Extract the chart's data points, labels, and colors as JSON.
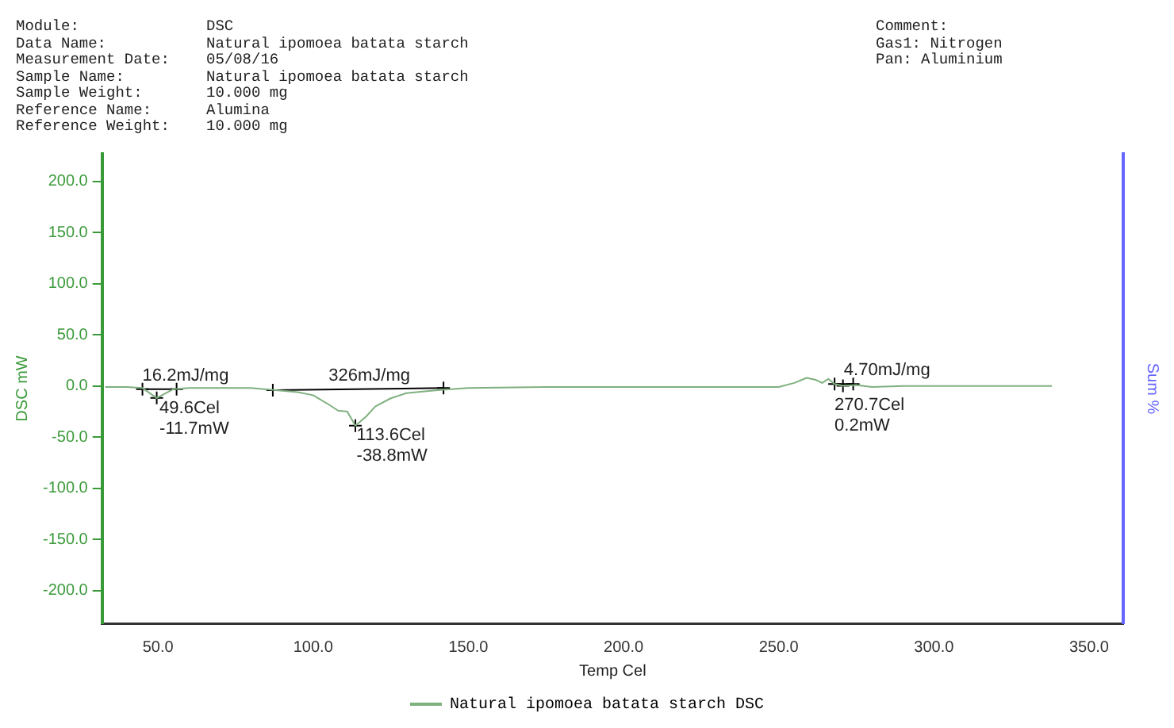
{
  "chart_data": {
    "type": "line",
    "xlabel": "Temp Cel",
    "ylabel": "DSC mW",
    "y2label": "Sum %",
    "xlim": [
      32,
      361
    ],
    "xticks": [
      {
        "value": 50,
        "label": "50.0"
      },
      {
        "value": 100,
        "label": "100.0"
      },
      {
        "value": 150,
        "label": "150.0"
      },
      {
        "value": 200,
        "label": "200.0"
      },
      {
        "value": 250,
        "label": "250.0"
      },
      {
        "value": 300,
        "label": "300.0"
      },
      {
        "value": 350,
        "label": "350.0"
      }
    ],
    "ylim": [
      -232,
      227
    ],
    "yticks": [
      {
        "value": -200,
        "label": "-200.0"
      },
      {
        "value": -150,
        "label": "-150.0"
      },
      {
        "value": -100,
        "label": "-100.0"
      },
      {
        "value": -50,
        "label": "-50.0"
      },
      {
        "value": 0,
        "label": "0.0"
      },
      {
        "value": 50,
        "label": "50.0"
      },
      {
        "value": 100,
        "label": "100.0"
      },
      {
        "value": 150,
        "label": "150.0"
      },
      {
        "value": 200,
        "label": "200.0"
      }
    ],
    "grid": false,
    "legend": "bottom",
    "line_style": "solid",
    "series": [
      {
        "name": "Natural ipomoea batata starch DSC",
        "color": "#7fb07f",
        "x": [
          33,
          40,
          45,
          49.6,
          55,
          60,
          70,
          80,
          88,
          95,
          100,
          105,
          108,
          111,
          113.6,
          117,
          120,
          125,
          130,
          140,
          150,
          175,
          200,
          225,
          240,
          250,
          255,
          259,
          262,
          264,
          266,
          268,
          270.7,
          275,
          280,
          290,
          300,
          320,
          338
        ],
        "values": [
          -1,
          -1,
          -2,
          -11.7,
          -3,
          -2,
          -2,
          -2,
          -4,
          -6,
          -9,
          -18,
          -24,
          -25,
          -38.8,
          -30,
          -20,
          -12,
          -7,
          -4,
          -2,
          -1,
          -1,
          -1,
          -1,
          -1,
          3,
          8,
          6,
          3,
          7,
          2,
          0.2,
          1,
          -1,
          0,
          0,
          0,
          0
        ]
      },
      {
        "type": "line",
        "color": "#000000",
        "marker": "cross",
        "x": [
          45,
          56
        ],
        "values": [
          -3,
          -3
        ]
      },
      {
        "type": "line",
        "color": "#000000",
        "marker": "cross",
        "x": [
          87,
          142
        ],
        "values": [
          -4,
          -2
        ]
      },
      {
        "type": "line",
        "color": "#000000",
        "marker": "cross",
        "x": [
          268,
          274
        ],
        "values": [
          2,
          2
        ]
      },
      {
        "type": "scatter",
        "color": "#000000",
        "marker": "cross",
        "x": [
          49.6,
          113.6,
          270.7
        ],
        "values": [
          -11.7,
          -38.8,
          0.2
        ]
      }
    ],
    "annotations": [
      "Module:\tDSC",
      "Data Name:\tNatural ipomoea batata starch",
      "Measurement Date:\t05/08/16",
      "Sample Name:\tNatural ipomoea batata starch",
      "Sample Weight:\t10.000 mg",
      "Reference Name:\tAlumina",
      "Reference Weight:\t10.000 mg",
      "Comment:",
      "Gas1: Nitrogen",
      "Pan: Aluminium",
      {
        "text": "16.2mJ/mg",
        "x": 45,
        "y": -3
      },
      {
        "text": "326mJ/mg",
        "x": 105,
        "y": -3.3
      },
      {
        "text": "4.70mJ/mg",
        "x": 271,
        "y": 2
      },
      {
        "text": "49.6Cel\n-11.7mW",
        "x": 50.5,
        "y": -13
      },
      {
        "text": "113.6Cel\n-38.8mW",
        "x": 114,
        "y": -40
      },
      {
        "text": "270.7Cel\n0.2mW",
        "x": 268,
        "y": -10
      }
    ]
  }
}
